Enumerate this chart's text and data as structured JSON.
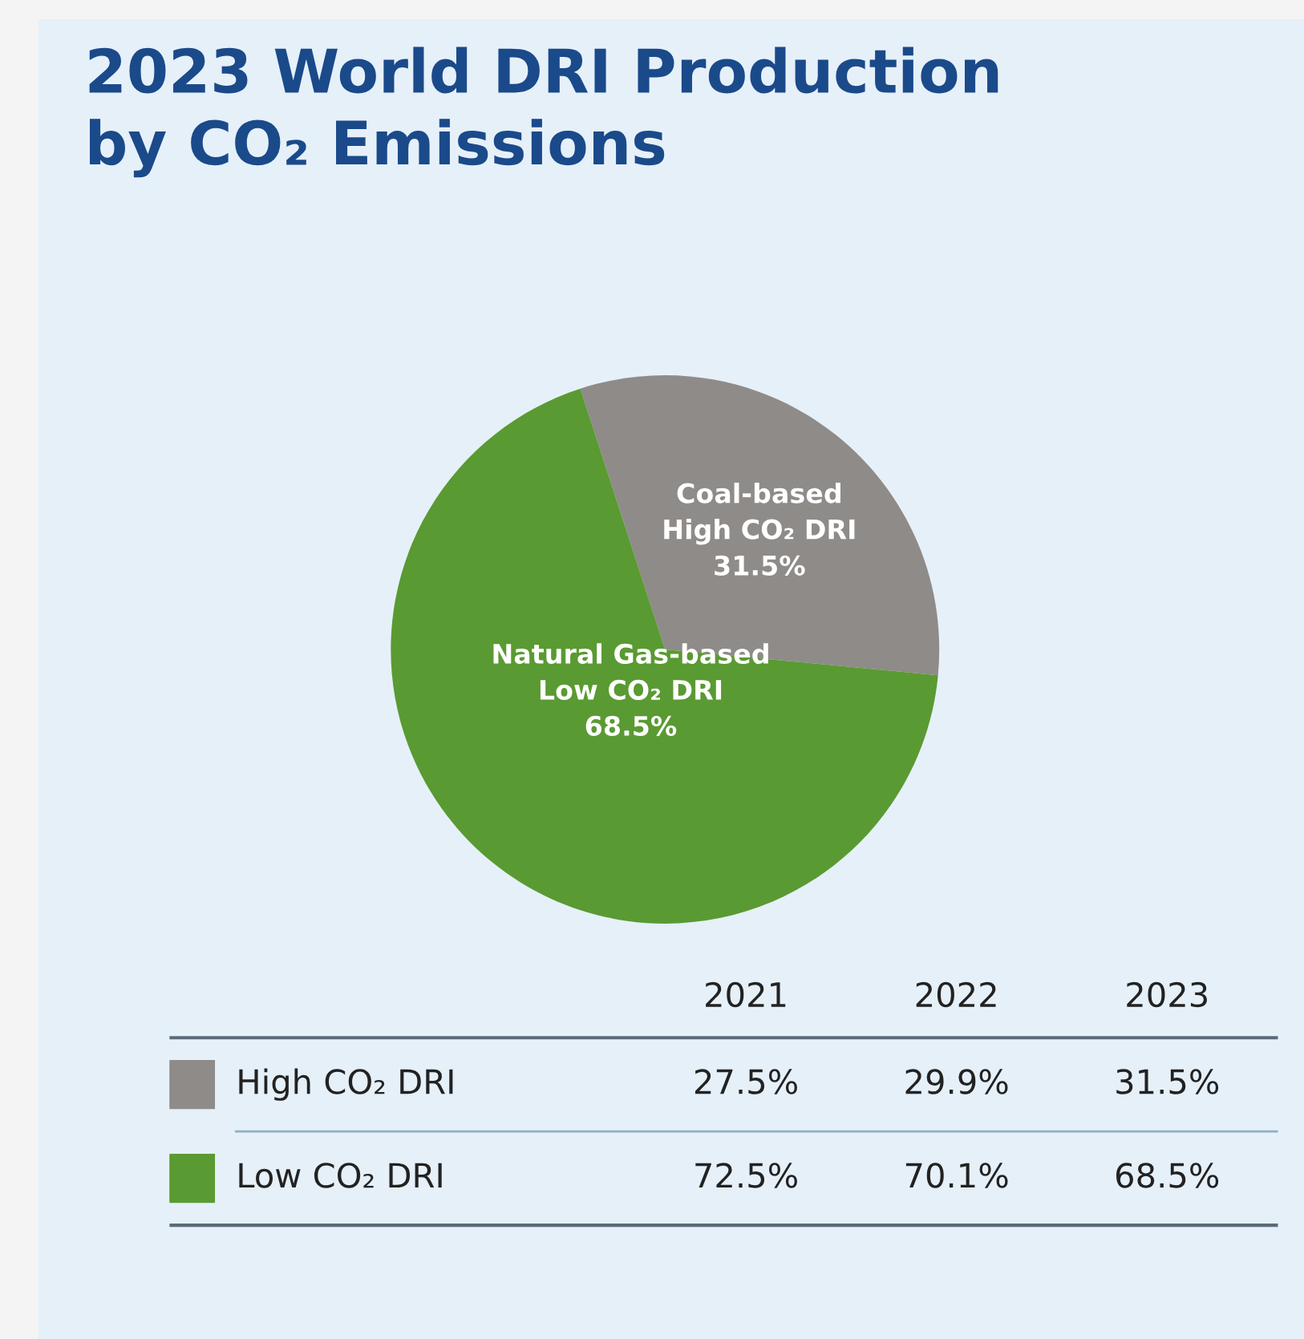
{
  "chart_data": [
    {
      "type": "pie",
      "title": "2023 World DRI Production\nby CO₂ Emissions",
      "categories": [
        "Coal-based\nHigh CO₂ DRI",
        "Natural Gas-based\nLow CO₂ DRI"
      ],
      "values": [
        31.5,
        68.5
      ],
      "colors": [
        "#8f8b88",
        "#5a9a32"
      ],
      "value_labels": [
        "31.5%",
        "68.5%"
      ]
    },
    {
      "type": "other",
      "categories": [
        "2021",
        "2022",
        "2023"
      ],
      "series": [
        {
          "name": "High CO₂ DRI",
          "color": "#8f8b88",
          "values": [
            27.5,
            29.9,
            31.5
          ],
          "value_labels": [
            "27.5%",
            "29.9%",
            "31.5%"
          ]
        },
        {
          "name": "Low CO₂ DRI",
          "color": "#5a9a32",
          "values": [
            72.5,
            70.1,
            68.5
          ],
          "value_labels": [
            "72.5%",
            "70.1%",
            "68.5%"
          ]
        }
      ]
    }
  ]
}
